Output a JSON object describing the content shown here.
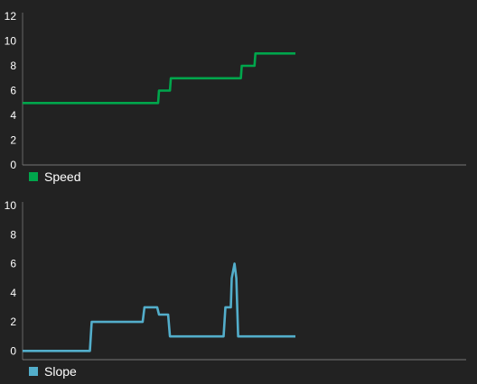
{
  "chart_data": [
    {
      "type": "line",
      "ylim": [
        0,
        12
      ],
      "yticks": [
        0,
        2,
        4,
        6,
        8,
        10,
        12
      ],
      "color": "#00a64c",
      "grid": false,
      "legend_position": "bottom-left",
      "series": [
        {
          "name": "Speed",
          "x": [
            0,
            149,
            150,
            162,
            163,
            240,
            241,
            255,
            256,
            300
          ],
          "values": [
            5,
            5,
            6,
            6,
            7,
            7,
            8,
            8,
            9,
            9
          ]
        }
      ]
    },
    {
      "type": "line",
      "ylim": [
        -0.6,
        10
      ],
      "yticks": [
        0,
        2,
        4,
        6,
        8,
        10
      ],
      "color": "#53aecb",
      "grid": false,
      "legend_position": "bottom-left",
      "series": [
        {
          "name": "Slope",
          "x": [
            0,
            74,
            76,
            132,
            134,
            148,
            150,
            160,
            162,
            221,
            223,
            229,
            230,
            233,
            235,
            237,
            239,
            300
          ],
          "values": [
            0,
            0,
            2,
            2,
            3,
            3,
            2.5,
            2.5,
            1,
            1,
            3,
            3,
            5,
            6,
            5,
            1,
            1,
            1
          ]
        }
      ]
    }
  ]
}
